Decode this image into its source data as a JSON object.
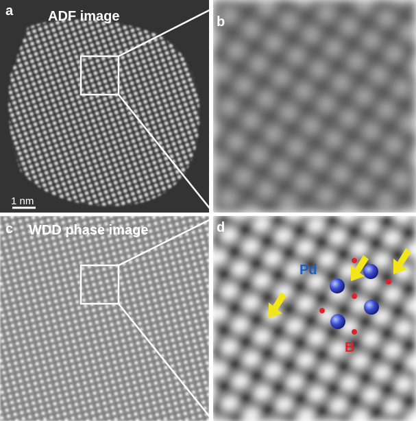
{
  "panels": [
    {
      "label": "a",
      "title": "ADF image",
      "scale_bar": "1 nm"
    },
    {
      "label": "b"
    },
    {
      "label": "c",
      "title": "WDD phase image"
    },
    {
      "label": "d",
      "annotations": [
        "Pd",
        "B"
      ]
    }
  ]
}
